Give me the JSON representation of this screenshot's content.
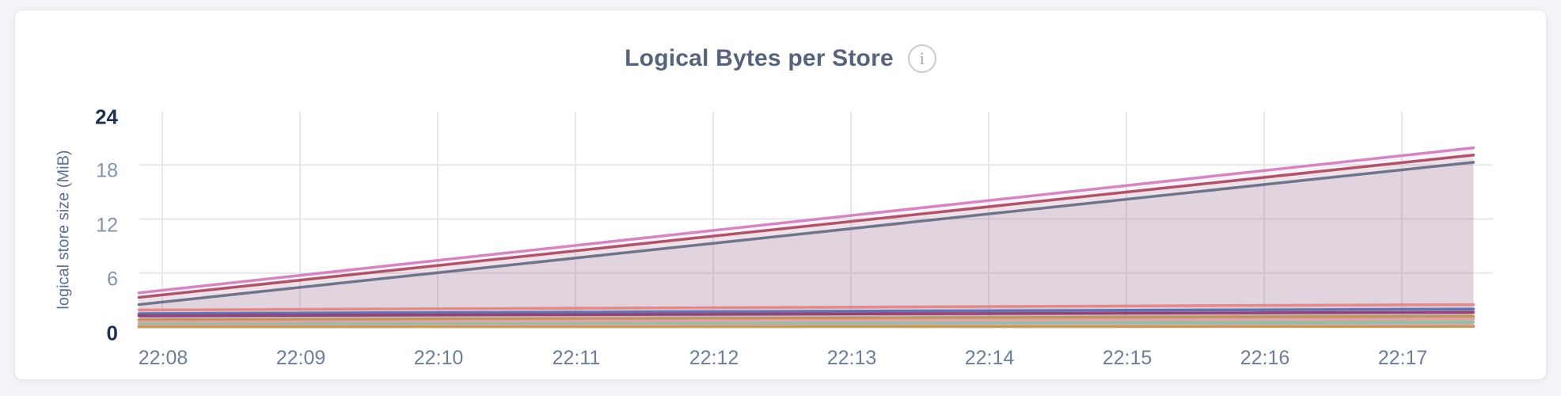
{
  "page": {
    "background": "#f3f4f8",
    "card_background": "#ffffff"
  },
  "header": {
    "title": "Logical Bytes per Store",
    "info_icon": "i"
  },
  "chart_data": {
    "type": "area",
    "title": "Logical Bytes per Store",
    "xlabel": "",
    "ylabel": "logical store size (MiB)",
    "ylim": [
      0,
      24
    ],
    "yticks": [
      0,
      6,
      12,
      18,
      24
    ],
    "ytick_bold": [
      0,
      24
    ],
    "xtick_labels": [
      "22:08",
      "22:09",
      "22:10",
      "22:11",
      "22:12",
      "22:13",
      "22:14",
      "22:15",
      "22:16",
      "22:17"
    ],
    "grid": true,
    "legend_position": "none",
    "x_range": {
      "start_approx": "22:07:50",
      "end_approx": "22:17:30"
    },
    "x_start_offset_min": -0.17,
    "x_end_offset_min": 9.52,
    "shape": "linear",
    "fill_opacity": 0.1,
    "grid_color": "#e7e7eb",
    "series": [
      {
        "id": "series-1",
        "color": "#ce7dbd",
        "start_mib": 3.8,
        "end_mib": 19.9
      },
      {
        "id": "series-2",
        "color": "#a8485e",
        "start_mib": 3.3,
        "end_mib": 19.1
      },
      {
        "id": "series-3",
        "color": "#636c86",
        "start_mib": 2.5,
        "end_mib": 18.3
      },
      {
        "id": "series-4",
        "color": "#e08484",
        "start_mib": 1.9,
        "end_mib": 2.5
      },
      {
        "id": "series-5",
        "color": "#5a6aae",
        "start_mib": 1.5,
        "end_mib": 2.0
      },
      {
        "id": "series-6",
        "color": "#8c3a6e",
        "start_mib": 1.25,
        "end_mib": 1.65
      },
      {
        "id": "series-7",
        "color": "#be9455",
        "start_mib": 0.8,
        "end_mib": 1.2
      },
      {
        "id": "series-8",
        "color": "#e2a3a6",
        "start_mib": 0.55,
        "end_mib": 0.9
      },
      {
        "id": "series-9",
        "color": "#8cc29d",
        "start_mib": 0.3,
        "end_mib": 0.55
      },
      {
        "id": "series-10",
        "color": "#d4a5c5",
        "start_mib": 0.12,
        "end_mib": 0.2
      },
      {
        "id": "series-11",
        "color": "#c69b51",
        "start_mib": 0.02,
        "end_mib": 0.06
      }
    ]
  }
}
